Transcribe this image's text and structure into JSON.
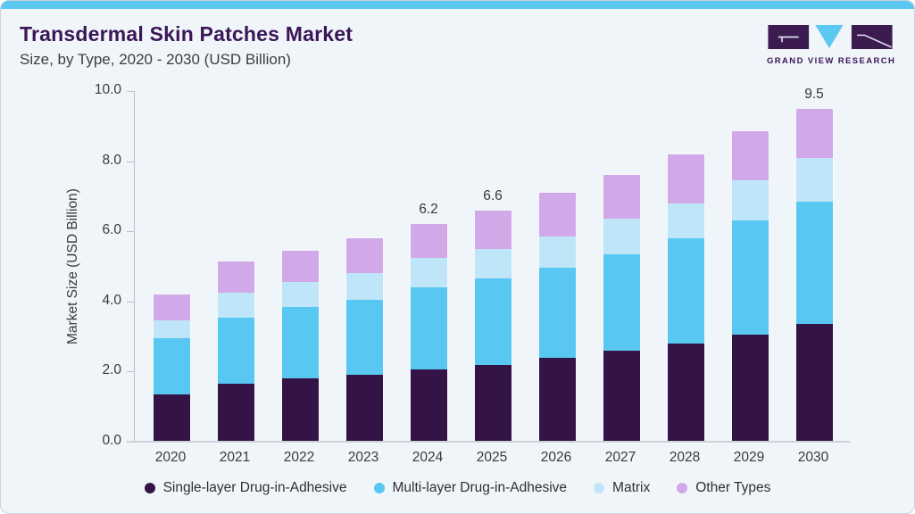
{
  "header": {
    "title": "Transdermal Skin Patches Market",
    "subtitle": "Size, by Type, 2020 - 2030 (USD Billion)"
  },
  "logo": {
    "text": "GRAND VIEW RESEARCH"
  },
  "colors": {
    "accent_bar": "#5ac8f0",
    "title": "#3a1656",
    "card_background": "#f0f5f9",
    "axis_line": "#b9c0c8"
  },
  "chart_data": {
    "type": "bar",
    "stacked": true,
    "title": "Transdermal Skin Patches Market Size, by Type, 2020 - 2030 (USD Billion)",
    "xlabel": "",
    "ylabel": "Market Size (USD Billion)",
    "ylim": [
      0,
      10
    ],
    "yticks": [
      0,
      2,
      4,
      6,
      8,
      10
    ],
    "ytick_labels": [
      "0.0",
      "2.0",
      "4.0",
      "6.0",
      "8.0",
      "10.0"
    ],
    "grid": false,
    "legend_position": "bottom",
    "categories": [
      "2020",
      "2021",
      "2022",
      "2023",
      "2024",
      "2025",
      "2026",
      "2027",
      "2028",
      "2029",
      "2030"
    ],
    "series": [
      {
        "name": "Single-layer Drug-in-Adhesive",
        "color": "#341447",
        "values": [
          1.35,
          1.65,
          1.8,
          1.9,
          2.05,
          2.2,
          2.4,
          2.6,
          2.8,
          3.05,
          3.35
        ]
      },
      {
        "name": "Multi-layer Drug-in-Adhesive",
        "color": "#58c7f2",
        "values": [
          1.6,
          1.9,
          2.05,
          2.15,
          2.35,
          2.45,
          2.55,
          2.75,
          3.0,
          3.25,
          3.5
        ]
      },
      {
        "name": "Matrix",
        "color": "#bfe6f8",
        "values": [
          0.5,
          0.7,
          0.7,
          0.75,
          0.85,
          0.85,
          0.9,
          1.0,
          1.0,
          1.15,
          1.25
        ]
      },
      {
        "name": "Other Types",
        "color": "#d2a9e8",
        "values": [
          0.75,
          0.9,
          0.9,
          1.0,
          0.95,
          1.1,
          1.25,
          1.25,
          1.4,
          1.4,
          1.4
        ]
      }
    ],
    "totals": [
      4.2,
      5.15,
      5.45,
      5.8,
      6.2,
      6.6,
      7.1,
      7.6,
      8.2,
      8.85,
      9.5
    ],
    "total_labels": [
      "",
      "",
      "",
      "",
      "6.2",
      "6.6",
      "",
      "",
      "",
      "",
      "9.5"
    ]
  }
}
